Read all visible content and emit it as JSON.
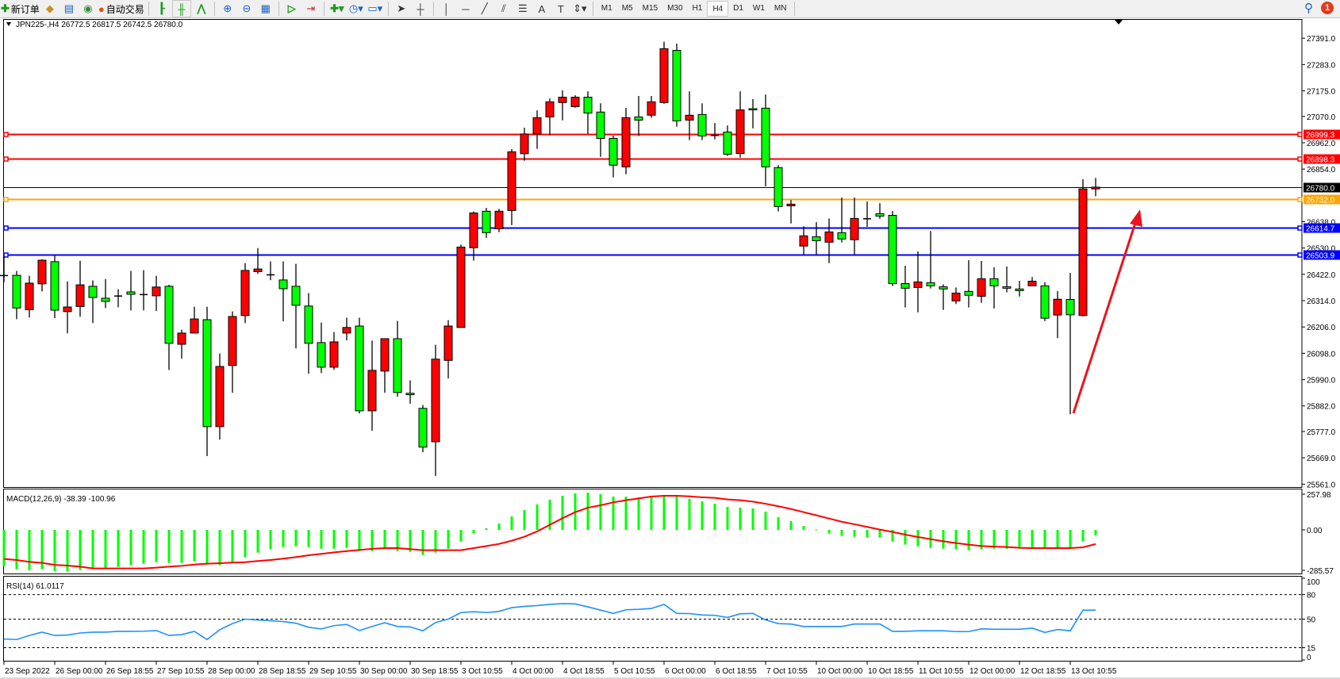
{
  "toolbar": {
    "new_order_label": "新订单",
    "auto_trading_label": "自动交易",
    "icons": [
      "new-order-icon",
      "metaeditor-icon",
      "market-watch-icon",
      "signals-icon",
      "auto-trading-icon",
      "bar-chart-icon",
      "candlestick-icon",
      "line-chart-icon",
      "zoom-in-icon",
      "zoom-out-icon",
      "tile-windows-icon",
      "autoscroll-icon",
      "chart-shift-icon",
      "indicators-icon",
      "periods-icon",
      "templates-icon",
      "cursor-icon",
      "crosshair-icon",
      "vertical-line-icon",
      "horizontal-line-icon",
      "trendline-icon",
      "fibonacci-icon",
      "fibo-fan-icon",
      "text-icon",
      "text-label-icon",
      "arrows-icon"
    ],
    "timeframes": [
      "M1",
      "M5",
      "M15",
      "M30",
      "H1",
      "H4",
      "D1",
      "W1",
      "MN"
    ],
    "active_timeframe": "H4",
    "notification_count": "1"
  },
  "chart": {
    "header": "JPN225-,H4  26772.5 26817.5 26742.5 26780.0",
    "symbol": "JPN225-",
    "period": "H4",
    "bull_color": "#ff0000",
    "bear_color": "#00ff00",
    "price_ticks": [
      "27391.0",
      "27283.0",
      "27175.0",
      "27070.0",
      "26962.0",
      "26854.0",
      "26638.0",
      "26530.0",
      "26422.0",
      "26314.0",
      "26206.0",
      "26098.0",
      "25990.0",
      "25882.0",
      "25777.0",
      "25669.0",
      "25561.0"
    ],
    "levels": [
      {
        "price": 26999.3,
        "label": "26999.3",
        "color": "#ff0000"
      },
      {
        "price": 26898.3,
        "label": "26898.3",
        "color": "#ff0000"
      },
      {
        "price": 26780.0,
        "label": "26780.0",
        "color": "#000000"
      },
      {
        "price": 26732.0,
        "label": "26732.0",
        "color": "#ffa500"
      },
      {
        "price": 26614.7,
        "label": "26614.7",
        "color": "#0000ff"
      },
      {
        "price": 26503.9,
        "label": "26503.9",
        "color": "#0000ff"
      }
    ],
    "date_labels": [
      "23 Sep 2022",
      "26 Sep 00:00",
      "26 Sep 18:55",
      "27 Sep 10:55",
      "28 Sep 00:00",
      "28 Sep 18:55",
      "29 Sep 10:55",
      "30 Sep 00:00",
      "30 Sep 18:55",
      "3 Oct 10:55",
      "4 Oct 00:00",
      "4 Oct 18:55",
      "5 Oct 10:55",
      "6 Oct 00:00",
      "6 Oct 18:55",
      "7 Oct 10:55",
      "10 Oct 00:00",
      "10 Oct 18:55",
      "11 Oct 10:55",
      "12 Oct 00:00",
      "12 Oct 18:55",
      "13 Oct 10:55"
    ],
    "arrow_color": "#e8141e"
  },
  "chart_data": {
    "type": "candlestick",
    "ohlc": [
      [
        26417,
        26499,
        26390,
        26417
      ],
      [
        26418,
        26436,
        26238,
        26284
      ],
      [
        26277,
        26416,
        26245,
        26386
      ],
      [
        26383,
        26484,
        26352,
        26480
      ],
      [
        26474,
        26499,
        26242,
        26275
      ],
      [
        26269,
        26393,
        26180,
        26288
      ],
      [
        26290,
        26478,
        26248,
        26379
      ],
      [
        26373,
        26397,
        26222,
        26327
      ],
      [
        26324,
        26403,
        26284,
        26311
      ],
      [
        26333,
        26361,
        26287,
        26333
      ],
      [
        26350,
        26436,
        26274,
        26340
      ],
      [
        26339,
        26439,
        26274,
        26339
      ],
      [
        26334,
        26416,
        26271,
        26370
      ],
      [
        26373,
        26379,
        26030,
        26139
      ],
      [
        26135,
        26195,
        26076,
        26181
      ],
      [
        26181,
        26289,
        26181,
        26239
      ],
      [
        26236,
        26289,
        25676,
        25797
      ],
      [
        25797,
        26097,
        25744,
        26044
      ],
      [
        26048,
        26270,
        25936,
        26249
      ],
      [
        26253,
        26468,
        26222,
        26438
      ],
      [
        26433,
        26530,
        26424,
        26444
      ],
      [
        26420,
        26475,
        26398,
        26420
      ],
      [
        26399,
        26475,
        26229,
        26363
      ],
      [
        26373,
        26465,
        26118,
        26295
      ],
      [
        26292,
        26345,
        26014,
        26139
      ],
      [
        26142,
        26224,
        26017,
        26041
      ],
      [
        26041,
        26185,
        26030,
        26145
      ],
      [
        26181,
        26244,
        26151,
        26204
      ],
      [
        26210,
        26244,
        25851,
        25862
      ],
      [
        25862,
        26150,
        25780,
        26028
      ],
      [
        26025,
        26158,
        25936,
        26158
      ],
      [
        26158,
        26231,
        25920,
        25937
      ],
      [
        25934,
        25987,
        25891,
        25928
      ],
      [
        25872,
        25886,
        25692,
        25713
      ],
      [
        25735,
        26133,
        25595,
        26074
      ],
      [
        26069,
        26234,
        25995,
        26210
      ],
      [
        26204,
        26544,
        26204,
        26534
      ],
      [
        26531,
        26680,
        26478,
        26674
      ],
      [
        26681,
        26695,
        26572,
        26593
      ],
      [
        26609,
        26691,
        26595,
        26681
      ],
      [
        26684,
        26936,
        26624,
        26925
      ],
      [
        26917,
        27024,
        26888,
        26998
      ],
      [
        26998,
        27095,
        26937,
        27065
      ],
      [
        27068,
        27144,
        26992,
        27130
      ],
      [
        27127,
        27177,
        27054,
        27149
      ],
      [
        27110,
        27157,
        27106,
        27149
      ],
      [
        27149,
        27173,
        26999,
        27084
      ],
      [
        27088,
        27124,
        26904,
        26980
      ],
      [
        26980,
        26991,
        26820,
        26870
      ],
      [
        26863,
        27105,
        26833,
        27065
      ],
      [
        27068,
        27154,
        26989,
        27055
      ],
      [
        27075,
        27154,
        27064,
        27130
      ],
      [
        27127,
        27377,
        27122,
        27348
      ],
      [
        27341,
        27369,
        27028,
        27052
      ],
      [
        27055,
        27173,
        26973,
        27075
      ],
      [
        27078,
        27124,
        26973,
        26990
      ],
      [
        26992,
        27043,
        26976,
        26992
      ],
      [
        27006,
        27033,
        26908,
        26915
      ],
      [
        26918,
        27173,
        26901,
        27097
      ],
      [
        27102,
        27141,
        27021,
        27097
      ],
      [
        27104,
        27160,
        26783,
        26863
      ],
      [
        26860,
        26870,
        26680,
        26700
      ],
      [
        26703,
        26727,
        26631,
        26710
      ],
      [
        26538,
        26619,
        26504,
        26580
      ],
      [
        26576,
        26636,
        26504,
        26560
      ],
      [
        26554,
        26651,
        26468,
        26596
      ],
      [
        26593,
        26737,
        26553,
        26567
      ],
      [
        26564,
        26737,
        26504,
        26651
      ],
      [
        26650,
        26721,
        26617,
        26650
      ],
      [
        26671,
        26714,
        26650,
        26661
      ],
      [
        26664,
        26682,
        26374,
        26384
      ],
      [
        26384,
        26457,
        26286,
        26365
      ],
      [
        26368,
        26516,
        26266,
        26391
      ],
      [
        26388,
        26600,
        26364,
        26375
      ],
      [
        26371,
        26381,
        26276,
        26362
      ],
      [
        26313,
        26368,
        26300,
        26345
      ],
      [
        26352,
        26480,
        26286,
        26336
      ],
      [
        26332,
        26477,
        26305,
        26404
      ],
      [
        26404,
        26451,
        26282,
        26375
      ],
      [
        26371,
        26454,
        26348,
        26365
      ],
      [
        26362,
        26395,
        26331,
        26355
      ],
      [
        26375,
        26411,
        26374,
        26394
      ],
      [
        26375,
        26390,
        26230,
        26242
      ],
      [
        26255,
        26353,
        26160,
        26320
      ],
      [
        26319,
        26428,
        25848,
        26256
      ],
      [
        26253,
        26812,
        26250,
        26772.5
      ],
      [
        26772.5,
        26817.5,
        26742.5,
        26780.0
      ]
    ],
    "ylim": [
      25561.0,
      27391.0
    ],
    "macd": {
      "label": "MACD(12,26,9) -38.39 -100.96",
      "ylim": [
        -285.57,
        257.98
      ],
      "ticks": [
        "257.98",
        "0.00",
        "-285.57"
      ],
      "hist_color": "#00ff00",
      "signal_color": "#ff0000",
      "histogram": [
        -258,
        -280,
        -288,
        -280,
        -292,
        -297,
        -286,
        -280,
        -275,
        -264,
        -252,
        -241,
        -230,
        -235,
        -235,
        -224,
        -247,
        -252,
        -230,
        -196,
        -162,
        -139,
        -122,
        -117,
        -122,
        -134,
        -134,
        -128,
        -151,
        -151,
        -139,
        -151,
        -156,
        -179,
        -162,
        -134,
        -83,
        -26,
        11,
        45,
        96,
        141,
        181,
        215,
        243,
        260,
        265,
        254,
        237,
        237,
        232,
        232,
        237,
        237,
        220,
        203,
        186,
        164,
        158,
        153,
        130,
        90,
        62,
        28,
        3,
        -26,
        -43,
        -49,
        -55,
        -55,
        -83,
        -105,
        -117,
        -128,
        -134,
        -139,
        -145,
        -139,
        -134,
        -134,
        -128,
        -128,
        -128,
        -128,
        -128,
        -83,
        -38.39
      ],
      "signal": [
        -207,
        -215,
        -228,
        -235,
        -249,
        -254,
        -262,
        -275,
        -275,
        -275,
        -275,
        -275,
        -269,
        -262,
        -256,
        -247,
        -241,
        -237,
        -233,
        -230,
        -222,
        -215,
        -205,
        -194,
        -181,
        -171,
        -160,
        -151,
        -143,
        -135,
        -130,
        -130,
        -137,
        -145,
        -145,
        -145,
        -145,
        -130,
        -115,
        -100,
        -77,
        -49,
        -11,
        36,
        83,
        126,
        158,
        175,
        196,
        211,
        224,
        237,
        243,
        243,
        239,
        232,
        228,
        217,
        211,
        201,
        186,
        168,
        149,
        126,
        104,
        81,
        58,
        40,
        21,
        2,
        -15,
        -34,
        -51,
        -66,
        -81,
        -94,
        -105,
        -115,
        -119,
        -122,
        -128,
        -130,
        -130,
        -130,
        -130,
        -124,
        -100.96
      ]
    },
    "rsi": {
      "label": "RSI(14) 61.0117",
      "ticks": [
        "100",
        "80",
        "50",
        "15",
        "0"
      ],
      "levels": [
        80,
        50,
        15
      ],
      "color": "#1e90ff",
      "values": [
        25.6,
        25,
        30,
        34,
        30,
        30.5,
        33,
        34,
        34,
        35,
        35,
        35.2,
        36,
        30,
        31,
        35,
        25,
        37,
        44.5,
        50,
        49,
        48,
        47,
        45,
        40,
        38,
        42,
        43.5,
        36,
        41,
        45.5,
        41,
        40.5,
        35.7,
        45.8,
        50,
        58,
        59,
        58,
        59.4,
        64,
        65.6,
        66.6,
        68,
        69,
        68.6,
        65,
        61,
        57,
        61.4,
        62,
        63,
        68,
        57,
        56.8,
        55,
        54.6,
        52,
        56.5,
        57,
        49,
        44.5,
        44,
        41,
        41,
        41,
        41,
        44,
        44,
        44,
        35,
        35,
        35.7,
        35.7,
        35.7,
        34.7,
        34.7,
        38,
        37.6,
        37.6,
        37.6,
        39,
        33.7,
        37.3,
        35.7,
        61,
        61.0117
      ]
    }
  }
}
